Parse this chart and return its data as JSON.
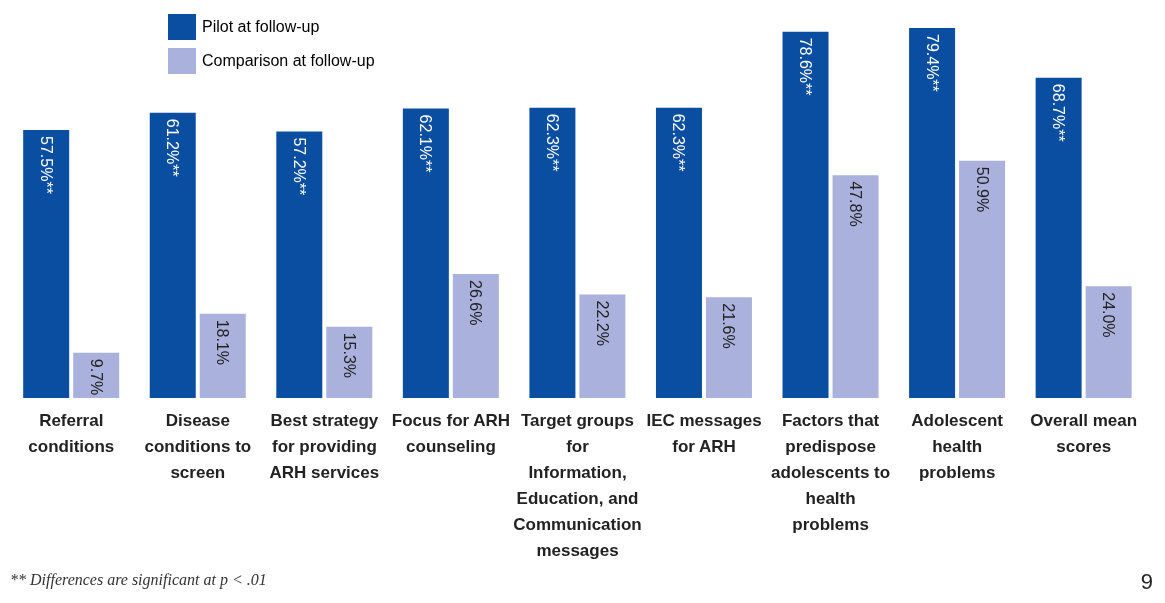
{
  "chart_data": {
    "type": "bar",
    "categories": [
      "Referral conditions",
      "Disease conditions to screen",
      "Best strategy for providing ARH services",
      "Focus for ARH counseling",
      "Target groups for Information, Education, and Communication messages",
      "IEC messages for ARH",
      "Factors that predispose adolescents to health problems",
      "Adolescent health problems",
      "Overall mean scores"
    ],
    "series": [
      {
        "name": "Pilot at follow-up",
        "color": "#0a4ea2",
        "values": [
          57.5,
          61.2,
          57.2,
          62.1,
          62.3,
          62.3,
          78.6,
          79.4,
          68.7
        ],
        "value_labels": [
          "57.5%**",
          "61.2%**",
          "57.2%**",
          "62.1%**",
          "62.3%**",
          "62.3%**",
          "78.6%**",
          "79.4%**",
          "68.7%**"
        ]
      },
      {
        "name": "Comparison at follow-up",
        "color": "#aab1dc",
        "values": [
          9.7,
          18.1,
          15.3,
          26.6,
          22.2,
          21.6,
          47.8,
          50.9,
          24.0
        ],
        "value_labels": [
          "9.7%",
          "18.1%",
          "15.3%",
          "26.6%",
          "22.2%",
          "21.6%",
          "47.8%",
          "50.9%",
          "24.0%"
        ]
      }
    ],
    "legend": "top left",
    "annotations": [
      "** Differences are significant at p < .01",
      "9"
    ]
  }
}
